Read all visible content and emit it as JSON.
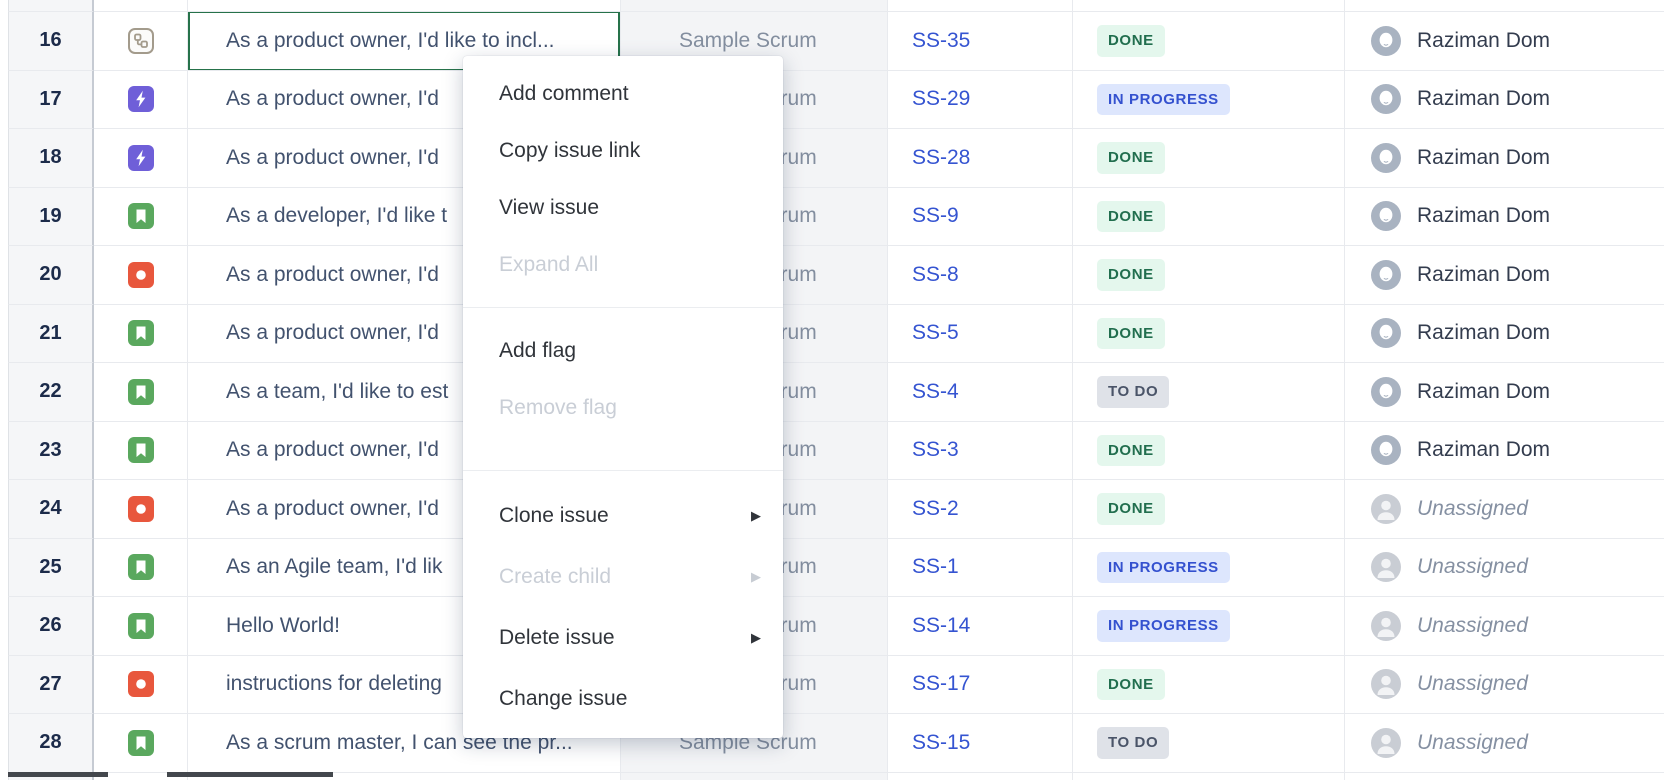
{
  "context_menu": {
    "items": [
      {
        "label": "Add comment",
        "enabled": true,
        "submenu": false
      },
      {
        "label": "Copy issue link",
        "enabled": true,
        "submenu": false
      },
      {
        "label": "View issue",
        "enabled": true,
        "submenu": false
      },
      {
        "label": "Expand All",
        "enabled": false,
        "submenu": false
      },
      {
        "divider": true
      },
      {
        "label": "Add flag",
        "enabled": true,
        "submenu": false
      },
      {
        "label": "Remove flag",
        "enabled": false,
        "submenu": false
      },
      {
        "divider": true
      },
      {
        "label": "Clone issue",
        "enabled": true,
        "submenu": true,
        "tall": true
      },
      {
        "label": "Create child",
        "enabled": false,
        "submenu": true,
        "tall": true
      },
      {
        "label": "Delete issue",
        "enabled": true,
        "submenu": true,
        "tall": true
      },
      {
        "label": "Change issue",
        "enabled": true,
        "submenu": false,
        "tall": true
      }
    ]
  },
  "statuses": {
    "done": {
      "label": "DONE",
      "fg": "#216e4e",
      "bg": "#e4f7ed"
    },
    "in_progress": {
      "label": "IN PROGRESS",
      "fg": "#3451cf",
      "bg": "#dde6fd"
    },
    "todo": {
      "label": "TO DO",
      "fg": "#4a5468",
      "bg": "#dfe2e8"
    }
  },
  "issue_types": {
    "story": {
      "name": "story",
      "color": "#5aa85e"
    },
    "bug": {
      "name": "bug",
      "color": "#e8573d"
    },
    "bolt": {
      "name": "bolt",
      "color": "#6f5fd8"
    },
    "subtask": {
      "name": "subtask",
      "color": "#a39b8c"
    }
  },
  "selection": {
    "row": "16",
    "column": "summary",
    "border_color": "#26724a"
  },
  "unassigned_label": "Unassigned",
  "table": {
    "rows": [
      {
        "num": "16",
        "type": "subtask",
        "summary": "As a product owner, I'd like to incl...",
        "project": "Sample Scrum",
        "key": "SS-35",
        "status": "done",
        "assignee": "Raziman Dom",
        "assigned": true,
        "selected": true
      },
      {
        "num": "17",
        "type": "bolt",
        "summary": "As a product owner, I'd",
        "project": "Sample Scrum",
        "key": "SS-29",
        "status": "in_progress",
        "assignee": "Raziman Dom",
        "assigned": true
      },
      {
        "num": "18",
        "type": "bolt",
        "summary": "As a product owner, I'd",
        "project": "Sample Scrum",
        "key": "SS-28",
        "status": "done",
        "assignee": "Raziman Dom",
        "assigned": true
      },
      {
        "num": "19",
        "type": "story",
        "summary": "As a developer, I'd like t",
        "project": "Sample Scrum",
        "key": "SS-9",
        "status": "done",
        "assignee": "Raziman Dom",
        "assigned": true
      },
      {
        "num": "20",
        "type": "bug",
        "summary": "As a product owner, I'd",
        "project": "Sample Scrum",
        "key": "SS-8",
        "status": "done",
        "assignee": "Raziman Dom",
        "assigned": true
      },
      {
        "num": "21",
        "type": "story",
        "summary": "As a product owner, I'd",
        "project": "Sample Scrum",
        "key": "SS-5",
        "status": "done",
        "assignee": "Raziman Dom",
        "assigned": true
      },
      {
        "num": "22",
        "type": "story",
        "summary": "As a team, I'd like to est",
        "project": "Sample Scrum",
        "key": "SS-4",
        "status": "todo",
        "assignee": "Raziman Dom",
        "assigned": true
      },
      {
        "num": "23",
        "type": "story",
        "summary": "As a product owner, I'd",
        "project": "Sample Scrum",
        "key": "SS-3",
        "status": "done",
        "assignee": "Raziman Dom",
        "assigned": true
      },
      {
        "num": "24",
        "type": "bug",
        "summary": "As a product owner, I'd",
        "project": "Sample Scrum",
        "key": "SS-2",
        "status": "done",
        "assignee": "Unassigned",
        "assigned": false
      },
      {
        "num": "25",
        "type": "story",
        "summary": "As an Agile team, I'd lik",
        "project": "Sample Scrum",
        "key": "SS-1",
        "status": "in_progress",
        "assignee": "Unassigned",
        "assigned": false
      },
      {
        "num": "26",
        "type": "story",
        "summary": "Hello World!",
        "project": "Sample Scrum",
        "key": "SS-14",
        "status": "in_progress",
        "assignee": "Unassigned",
        "assigned": false
      },
      {
        "num": "27",
        "type": "bug",
        "summary": "instructions for deleting",
        "project": "Sample Scrum",
        "key": "SS-17",
        "status": "done",
        "assignee": "Unassigned",
        "assigned": false
      },
      {
        "num": "28",
        "type": "story",
        "summary": "As a scrum master, I can see the pr...",
        "project": "Sample Scrum",
        "key": "SS-15",
        "status": "todo",
        "assignee": "Unassigned",
        "assigned": false
      }
    ]
  }
}
